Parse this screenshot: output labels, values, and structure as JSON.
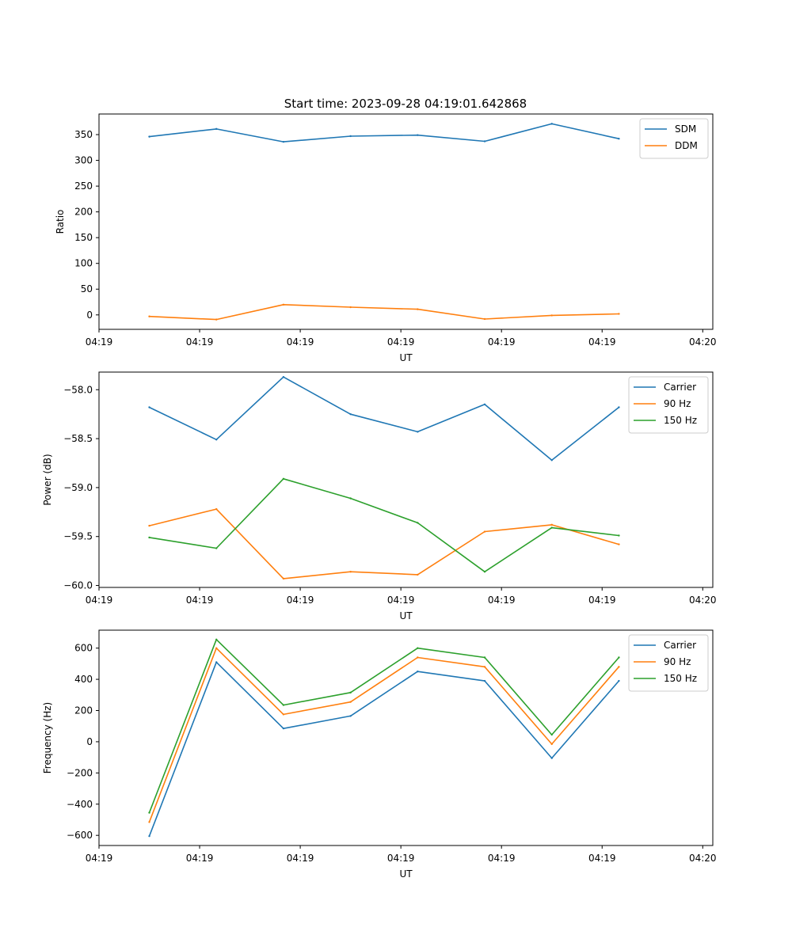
{
  "figure_title": "Start time: 2023-09-28 04:19:01.642868",
  "chart_data": [
    {
      "type": "line",
      "title": "Start time: 2023-09-28 04:19:01.642868",
      "xlabel": "UT",
      "ylabel": "Ratio",
      "x": [
        0,
        1,
        2,
        3,
        4,
        5,
        6,
        7
      ],
      "xlim": [
        -0.75,
        8.4
      ],
      "ylim": [
        -28,
        390
      ],
      "xticks": [
        -0.75,
        0.75,
        2.25,
        3.75,
        5.25,
        6.75,
        8.25
      ],
      "xtick_labels": [
        "04:19",
        "04:19",
        "04:19",
        "04:19",
        "04:19",
        "04:19",
        "04:20"
      ],
      "yticks": [
        0,
        50,
        100,
        150,
        200,
        250,
        300,
        350
      ],
      "ytick_labels": [
        "0",
        "50",
        "100",
        "150",
        "200",
        "250",
        "300",
        "350"
      ],
      "legend_loc": "top-right",
      "series": [
        {
          "name": "SDM",
          "color": "#1f77b4",
          "values": [
            346,
            361,
            336,
            347,
            349,
            337,
            371,
            342
          ]
        },
        {
          "name": "DDM",
          "color": "#ff7f0e",
          "values": [
            -3,
            -9,
            20,
            15,
            11,
            -8,
            -1,
            2
          ]
        }
      ]
    },
    {
      "type": "line",
      "title": "",
      "xlabel": "UT",
      "ylabel": "Power (dB)",
      "x": [
        0,
        1,
        2,
        3,
        4,
        5,
        6,
        7
      ],
      "xlim": [
        -0.75,
        8.4
      ],
      "ylim": [
        -60.02,
        -57.82
      ],
      "xticks": [
        -0.75,
        0.75,
        2.25,
        3.75,
        5.25,
        6.75,
        8.25
      ],
      "xtick_labels": [
        "04:19",
        "04:19",
        "04:19",
        "04:19",
        "04:19",
        "04:19",
        "04:20"
      ],
      "yticks": [
        -60.0,
        -59.5,
        -59.0,
        -58.5,
        -58.0
      ],
      "ytick_labels": [
        "−60.0",
        "−59.5",
        "−59.0",
        "−58.5",
        "−58.0"
      ],
      "legend_loc": "top-right",
      "series": [
        {
          "name": "Carrier",
          "color": "#1f77b4",
          "values": [
            -58.18,
            -58.51,
            -57.87,
            -58.25,
            -58.43,
            -58.15,
            -58.72,
            -58.18
          ]
        },
        {
          "name": "90 Hz",
          "color": "#ff7f0e",
          "values": [
            -59.39,
            -59.22,
            -59.93,
            -59.86,
            -59.89,
            -59.45,
            -59.38,
            -59.58
          ]
        },
        {
          "name": "150 Hz",
          "color": "#2ca02c",
          "values": [
            -59.51,
            -59.62,
            -58.91,
            -59.11,
            -59.36,
            -59.86,
            -59.41,
            -59.49
          ]
        }
      ]
    },
    {
      "type": "line",
      "title": "",
      "xlabel": "UT",
      "ylabel": "Frequency (Hz)",
      "x": [
        0,
        1,
        2,
        3,
        4,
        5,
        6,
        7
      ],
      "xlim": [
        -0.75,
        8.4
      ],
      "ylim": [
        -665,
        715
      ],
      "xticks": [
        -0.75,
        0.75,
        2.25,
        3.75,
        5.25,
        6.75,
        8.25
      ],
      "xtick_labels": [
        "04:19",
        "04:19",
        "04:19",
        "04:19",
        "04:19",
        "04:19",
        "04:20"
      ],
      "yticks": [
        -600,
        -400,
        -200,
        0,
        200,
        400,
        600
      ],
      "ytick_labels": [
        "−600",
        "−400",
        "−200",
        "0",
        "200",
        "400",
        "600"
      ],
      "legend_loc": "top-right",
      "series": [
        {
          "name": "Carrier",
          "color": "#1f77b4",
          "values": [
            -605,
            510,
            85,
            165,
            450,
            390,
            -105,
            390
          ]
        },
        {
          "name": "90 Hz",
          "color": "#ff7f0e",
          "values": [
            -515,
            600,
            175,
            255,
            540,
            480,
            -15,
            480
          ]
        },
        {
          "name": "150 Hz",
          "color": "#2ca02c",
          "values": [
            -455,
            655,
            235,
            315,
            600,
            540,
            45,
            540
          ]
        }
      ]
    }
  ]
}
